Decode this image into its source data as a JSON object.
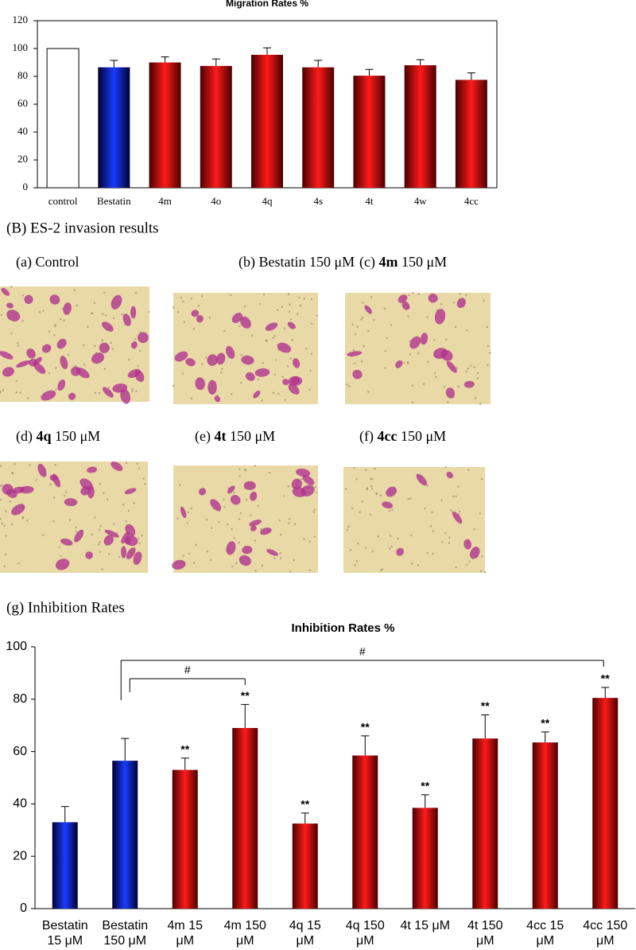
{
  "chart_data": [
    {
      "type": "bar",
      "title": "Migration Rates %",
      "categories": [
        "control",
        "Bestatin",
        "4m",
        "4o",
        "4q",
        "4s",
        "4t",
        "4w",
        "4cc"
      ],
      "values": [
        100,
        86.5,
        90,
        87.5,
        95.5,
        86.5,
        80.5,
        88,
        77.5
      ],
      "errors": [
        null,
        5,
        4,
        5,
        5,
        5,
        4.5,
        4,
        5
      ],
      "colors": [
        "white",
        "blue",
        "red",
        "red",
        "red",
        "red",
        "red",
        "red",
        "red"
      ],
      "ylim": [
        0,
        120
      ],
      "yticks": [
        0,
        20,
        40,
        60,
        80,
        100,
        120
      ]
    },
    {
      "type": "bar",
      "title": "Inhibition Rates %",
      "categories": [
        [
          "Bestatin",
          "15 μM"
        ],
        [
          "Bestatin",
          "150 μM"
        ],
        [
          "4m 15",
          "μM"
        ],
        [
          "4m 150",
          "μM"
        ],
        [
          "4q 15",
          "μM"
        ],
        [
          "4q 150",
          "μM"
        ],
        [
          "4t 15 μM"
        ],
        [
          "4t 150",
          "μM"
        ],
        [
          "4cc 15",
          "μM"
        ],
        [
          "4cc 150",
          "μM"
        ]
      ],
      "values": [
        33,
        56.5,
        53,
        69,
        32.5,
        58.5,
        38.5,
        65,
        63.5,
        80.5
      ],
      "errors": [
        6,
        8.5,
        4.5,
        9,
        4,
        7.5,
        5,
        9,
        4,
        4
      ],
      "colors": [
        "blue",
        "blue",
        "red",
        "red",
        "red",
        "red",
        "red",
        "red",
        "red",
        "red"
      ],
      "star_labels": [
        null,
        null,
        "**",
        "**",
        "**",
        "**",
        "**",
        "**",
        "**",
        "**"
      ],
      "significance": [
        "#",
        "#"
      ],
      "ylim": [
        0,
        100
      ],
      "yticks": [
        0,
        20,
        40,
        60,
        80,
        100
      ]
    }
  ],
  "panel_b_title": "(B) ES-2 invasion results",
  "images": [
    {
      "prefix": "(a) Control"
    },
    {
      "prefix": "(b) Bestatin 150 μM"
    },
    {
      "prefix": "(c) ",
      "bold": "4m",
      "suffix": " 150 μM"
    },
    {
      "prefix": "(d) ",
      "bold": "4q",
      "suffix": " 150 μM"
    },
    {
      "prefix": "(e) ",
      "bold": "4t",
      "suffix": " 150 μM"
    },
    {
      "prefix": "(f) ",
      "bold": "4cc",
      "suffix": " 150 μM"
    }
  ],
  "panel_g_title": "(g) Inhibition Rates"
}
